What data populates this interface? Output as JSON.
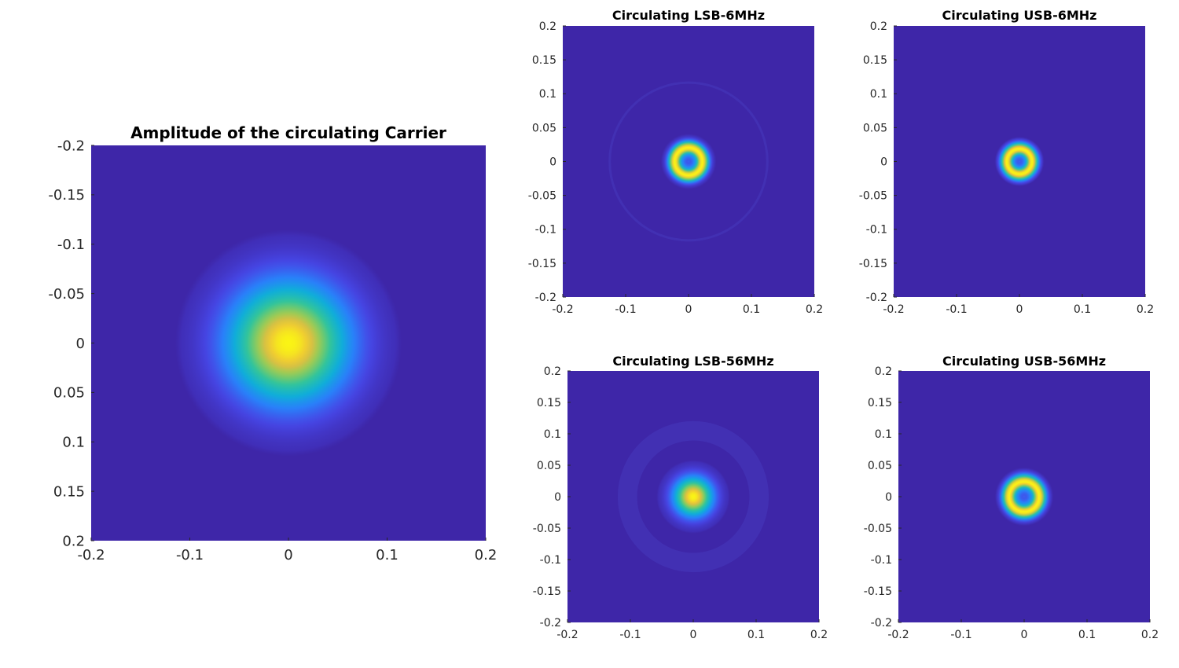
{
  "chart_data": [
    {
      "type": "heatmap",
      "title": "Amplitude of the circulating Carrier",
      "xlim": [
        -0.2,
        0.2
      ],
      "ylim": [
        -0.2,
        0.2
      ],
      "y_direction": "reversed",
      "xticks": [
        "-0.2",
        "-0.1",
        "0",
        "0.1",
        "0.2"
      ],
      "yticks": [
        "-0.2",
        "-0.15",
        "-0.1",
        "-0.05",
        "0",
        "0.05",
        "0.1",
        "0.15",
        "0.2"
      ],
      "colormap": "parula",
      "field": {
        "shape": "gaussian",
        "center": [
          0,
          0
        ],
        "radius": 0.055
      },
      "grid": false
    },
    {
      "type": "heatmap",
      "title": "Circulating LSB-6MHz",
      "xlim": [
        -0.2,
        0.2
      ],
      "ylim": [
        -0.2,
        0.2
      ],
      "y_direction": "normal",
      "xticks": [
        "-0.2",
        "-0.1",
        "0",
        "0.1",
        "0.2"
      ],
      "yticks": [
        "0.2",
        "0.15",
        "0.1",
        "0.05",
        "0",
        "-0.05",
        "-0.1",
        "-0.15",
        "-0.2"
      ],
      "colormap": "parula",
      "field": {
        "shape": "donut",
        "center": [
          0,
          0
        ],
        "radius": 0.038,
        "ring_radius": 0.022,
        "outer_ring": true
      },
      "grid": false
    },
    {
      "type": "heatmap",
      "title": "Circulating USB-6MHz",
      "xlim": [
        -0.2,
        0.2
      ],
      "ylim": [
        -0.2,
        0.2
      ],
      "y_direction": "normal",
      "xticks": [
        "-0.2",
        "-0.1",
        "0",
        "0.1",
        "0.2"
      ],
      "yticks": [
        "0.2",
        "0.15",
        "0.1",
        "0.05",
        "0",
        "-0.05",
        "-0.1",
        "-0.15",
        "-0.2"
      ],
      "colormap": "parula",
      "field": {
        "shape": "donut",
        "center": [
          0,
          0
        ],
        "radius": 0.036,
        "ring_radius": 0.02,
        "outer_ring": false
      },
      "grid": false
    },
    {
      "type": "heatmap",
      "title": "Circulating LSB-56MHz",
      "xlim": [
        -0.2,
        0.2
      ],
      "ylim": [
        -0.2,
        0.2
      ],
      "y_direction": "normal",
      "xticks": [
        "-0.2",
        "-0.1",
        "0",
        "0.1",
        "0.2"
      ],
      "yticks": [
        "0.2",
        "0.15",
        "0.1",
        "0.05",
        "0",
        "-0.05",
        "-0.1",
        "-0.15",
        "-0.2"
      ],
      "colormap": "parula",
      "field": {
        "shape": "gaussian",
        "center": [
          0,
          0
        ],
        "radius": 0.028,
        "halo": true
      },
      "grid": false
    },
    {
      "type": "heatmap",
      "title": "Circulating USB-56MHz",
      "xlim": [
        -0.2,
        0.2
      ],
      "ylim": [
        -0.2,
        0.2
      ],
      "y_direction": "normal",
      "xticks": [
        "-0.2",
        "-0.1",
        "0",
        "0.1",
        "0.2"
      ],
      "yticks": [
        "0.2",
        "0.15",
        "0.1",
        "0.05",
        "0",
        "-0.05",
        "-0.1",
        "-0.15",
        "-0.2"
      ],
      "colormap": "parula",
      "field": {
        "shape": "donut",
        "center": [
          0,
          0
        ],
        "radius": 0.04,
        "ring_radius": 0.024,
        "outer_ring": false
      },
      "grid": false
    }
  ],
  "colors": {
    "background_field": "#3e26a8",
    "colormap_low": "#3e26a8",
    "colormap_mid": "#2ab7a5",
    "colormap_high": "#f9fb0e"
  }
}
